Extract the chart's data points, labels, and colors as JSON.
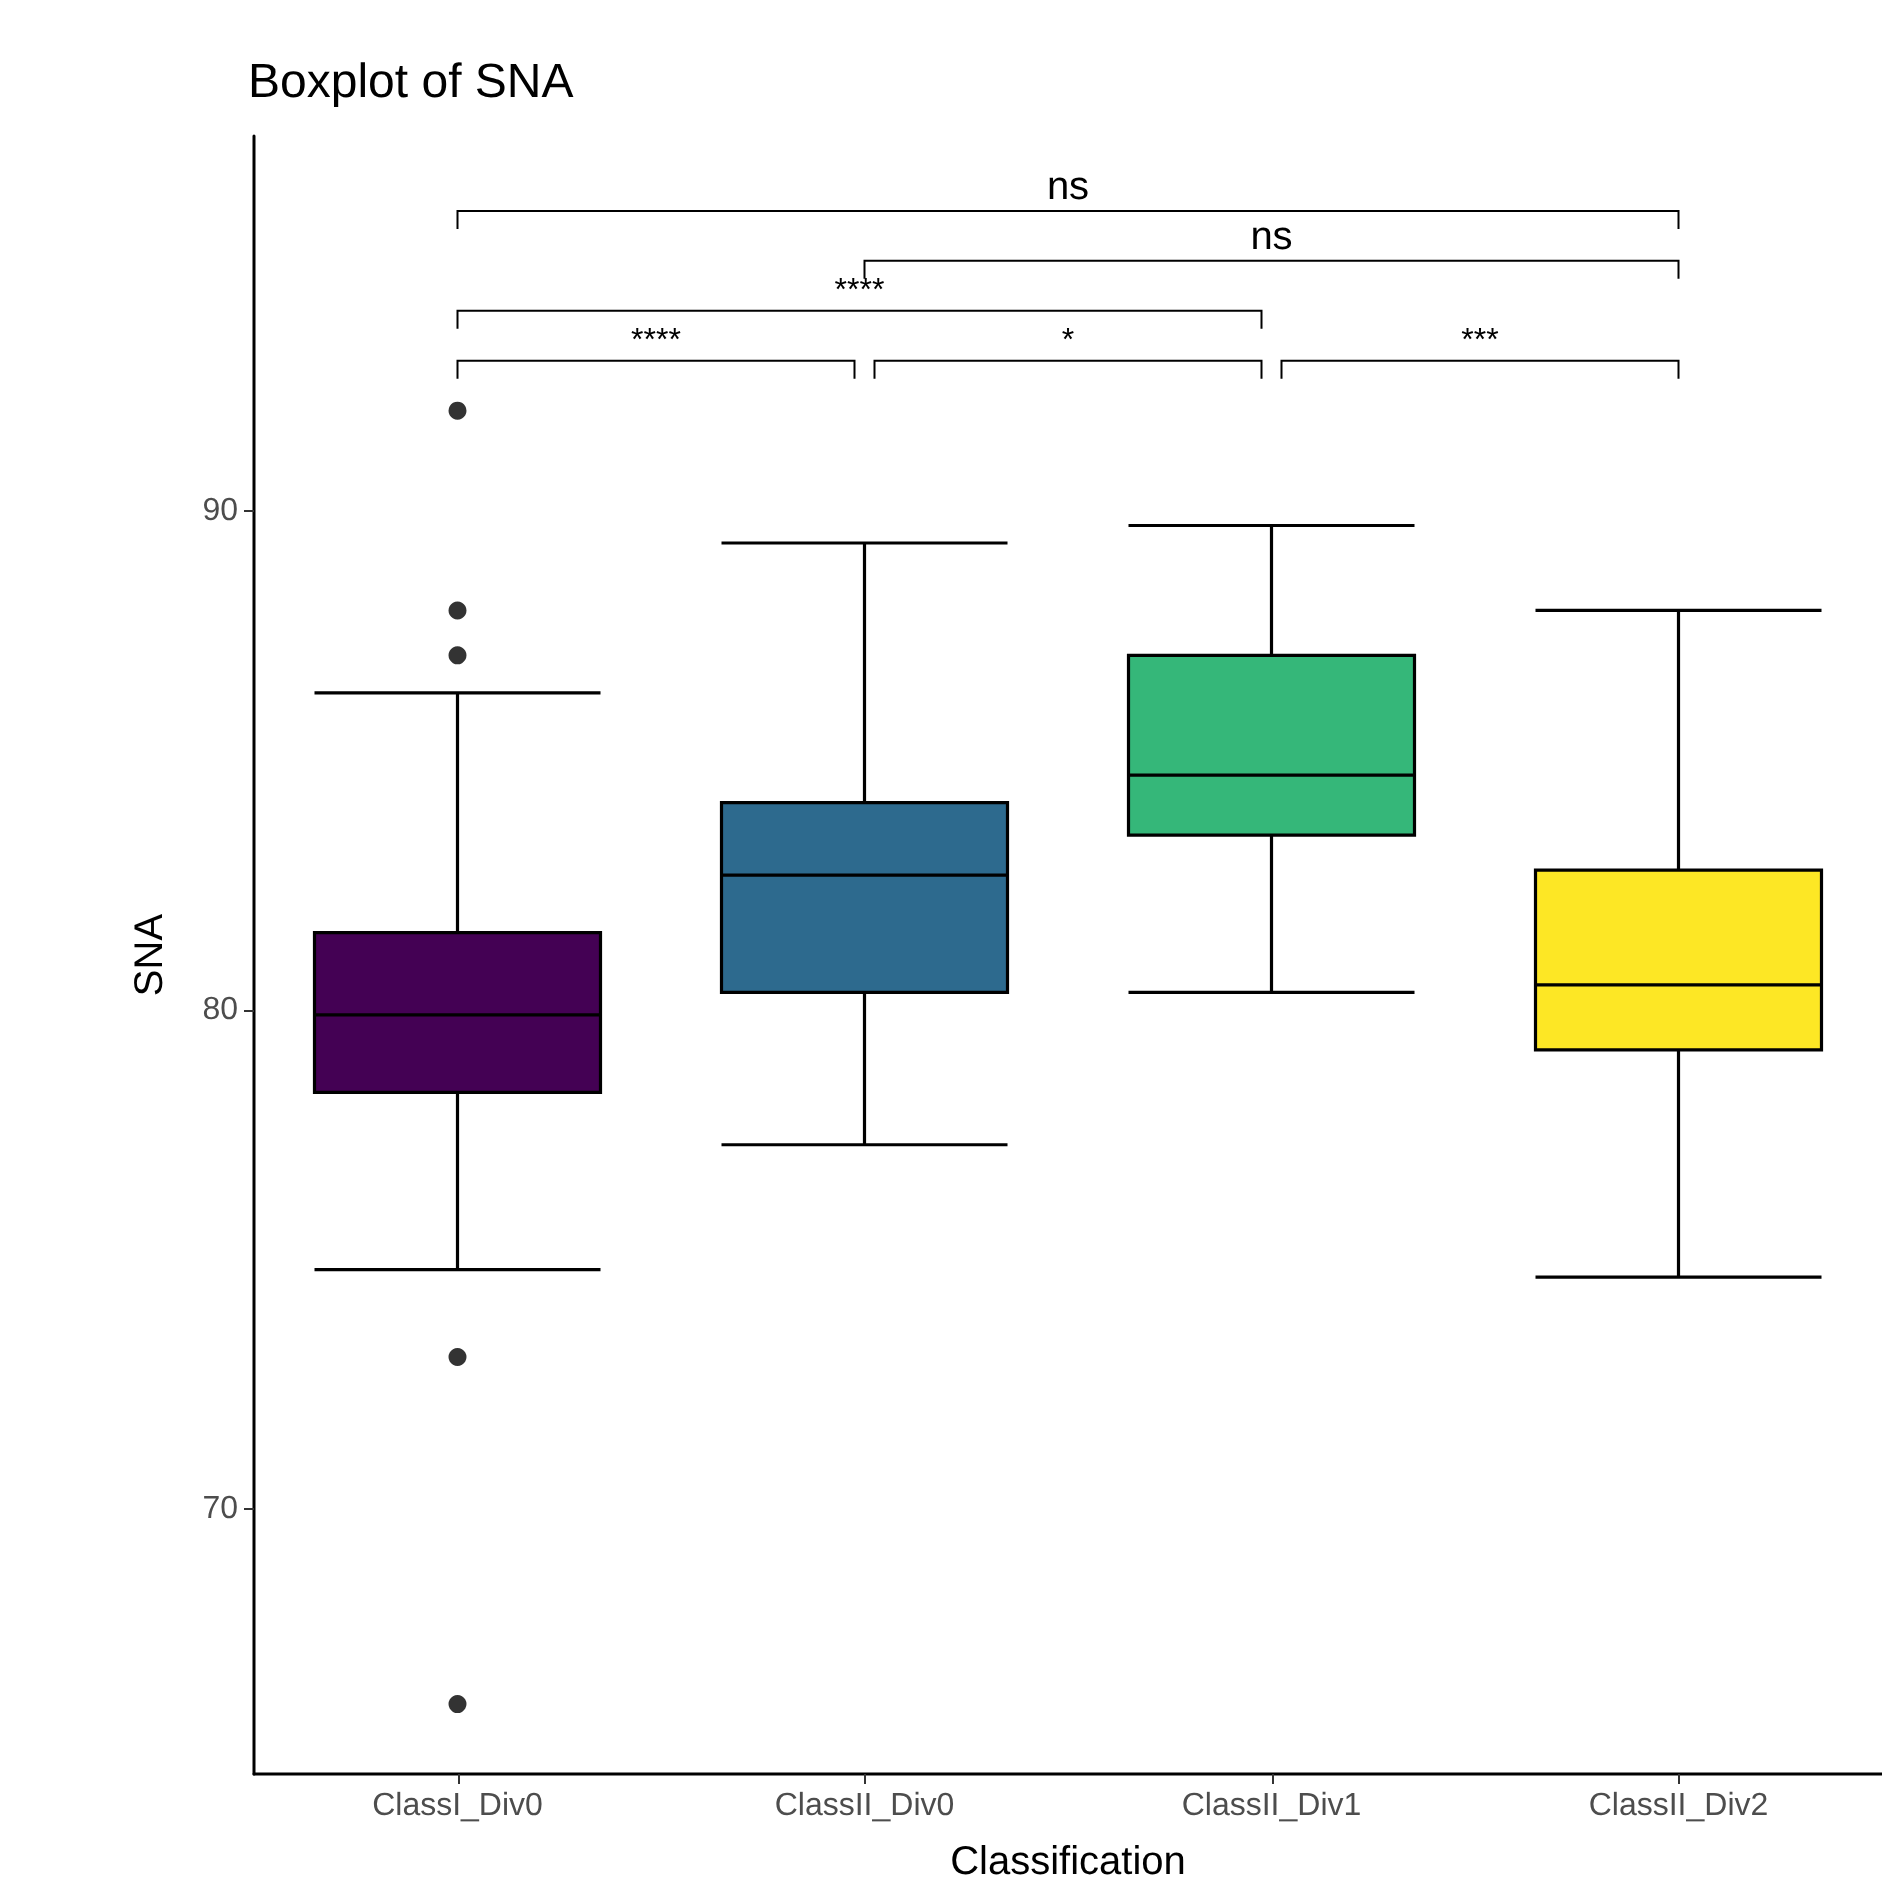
{
  "chart_data": {
    "type": "box",
    "title": "Boxplot of SNA",
    "xlabel": "Classification",
    "ylabel": "SNA",
    "categories": [
      "ClassI_Div0",
      "ClassII_Div0",
      "ClassII_Div1",
      "ClassII_Div2"
    ],
    "boxes": [
      {
        "low": 74.8,
        "q1": 78.35,
        "median": 79.9,
        "q3": 81.55,
        "high": 86.35,
        "outliers": [
          92.0,
          88.0,
          87.1,
          73.05,
          66.1
        ]
      },
      {
        "low": 77.3,
        "q1": 80.35,
        "median": 82.7,
        "q3": 84.15,
        "high": 89.35
      },
      {
        "low": 80.35,
        "q1": 83.5,
        "median": 84.7,
        "q3": 87.1,
        "high": 89.7
      },
      {
        "low": 74.65,
        "q1": 79.2,
        "median": 80.5,
        "q3": 82.8,
        "high": 88.0
      }
    ],
    "colors": [
      "#440154",
      "#2d6a8e",
      "#35b779",
      "#fde725"
    ],
    "ylim": [
      64.7,
      97.5
    ],
    "yticks": [
      70,
      80,
      90
    ],
    "annotations": [
      "ns",
      "ns",
      "****",
      "****",
      "*",
      "***"
    ]
  }
}
